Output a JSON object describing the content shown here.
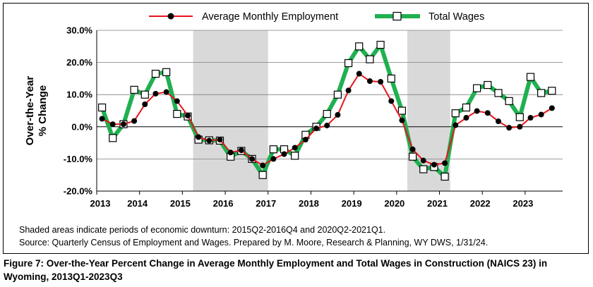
{
  "chart_data": {
    "type": "line",
    "title": "",
    "ylabel": "Over-the-Year\n% Change",
    "xlabel": "",
    "ylim": [
      -20,
      30
    ],
    "y_ticks": [
      "30.0%",
      "20.0%",
      "10.0%",
      "0.0%",
      "-10.0%",
      "-20.0%"
    ],
    "y_tick_values": [
      30,
      20,
      10,
      0,
      -10,
      -20
    ],
    "x_tick_labels": [
      "2013",
      "2014",
      "2015",
      "2016",
      "2017",
      "2018",
      "2019",
      "2020",
      "2021",
      "2022",
      "2023"
    ],
    "x_start": "2013Q1",
    "x_end": "2023Q3",
    "grid": true,
    "legend_position": "top",
    "shaded_periods": [
      {
        "start": "2015Q2",
        "end": "2016Q4"
      },
      {
        "start": "2020Q2",
        "end": "2021Q1"
      }
    ],
    "series": [
      {
        "name": "Average Monthly Employment",
        "color": "#e8141c",
        "marker": "filled-circle",
        "values": [
          2.5,
          0.8,
          0.8,
          1.8,
          7.0,
          10.3,
          10.8,
          8.0,
          3.5,
          -3.2,
          -4.3,
          -4.0,
          -8.0,
          -7.3,
          -10.0,
          -12.0,
          -10.0,
          -8.5,
          -6.5,
          -4.0,
          -0.5,
          0.4,
          3.7,
          11.3,
          16.5,
          14.2,
          14.0,
          8.0,
          2.0,
          -7.0,
          -10.5,
          -11.8,
          -11.3,
          0.5,
          2.8,
          4.9,
          4.3,
          1.7,
          -0.3,
          0.0,
          2.8,
          3.8,
          5.8
        ]
      },
      {
        "name": "Total Wages",
        "color": "#20b050",
        "marker": "hollow-square",
        "values": [
          6.0,
          -3.5,
          0.8,
          11.5,
          10.0,
          16.5,
          17.0,
          4.0,
          3.2,
          -4.0,
          -4.2,
          -4.3,
          -9.3,
          -7.5,
          -10.0,
          -15.0,
          -7.0,
          -7.0,
          -9.0,
          -2.5,
          0.0,
          4.0,
          10.0,
          19.8,
          25.0,
          21.0,
          25.5,
          15.0,
          5.0,
          -9.3,
          -13.2,
          -12.5,
          -15.5,
          4.2,
          6.0,
          12.0,
          13.0,
          10.5,
          8.0,
          3.0,
          15.5,
          10.5,
          11.2
        ]
      }
    ]
  },
  "notes": {
    "shaded": "Shaded areas indicate periods of economic downturn: 2015Q2-2016Q4 and 2020Q2-2021Q1.",
    "source": "Source: Quarterly Census of Employment and Wages. Prepared by M. Moore, Research & Planning, WY DWS, 1/31/24."
  },
  "caption": "Figure 7: Over-the-Year Percent Change in Average Monthly Employment and Total Wages in Construction (NAICS 23) in Wyoming, 2013Q1-2023Q3"
}
